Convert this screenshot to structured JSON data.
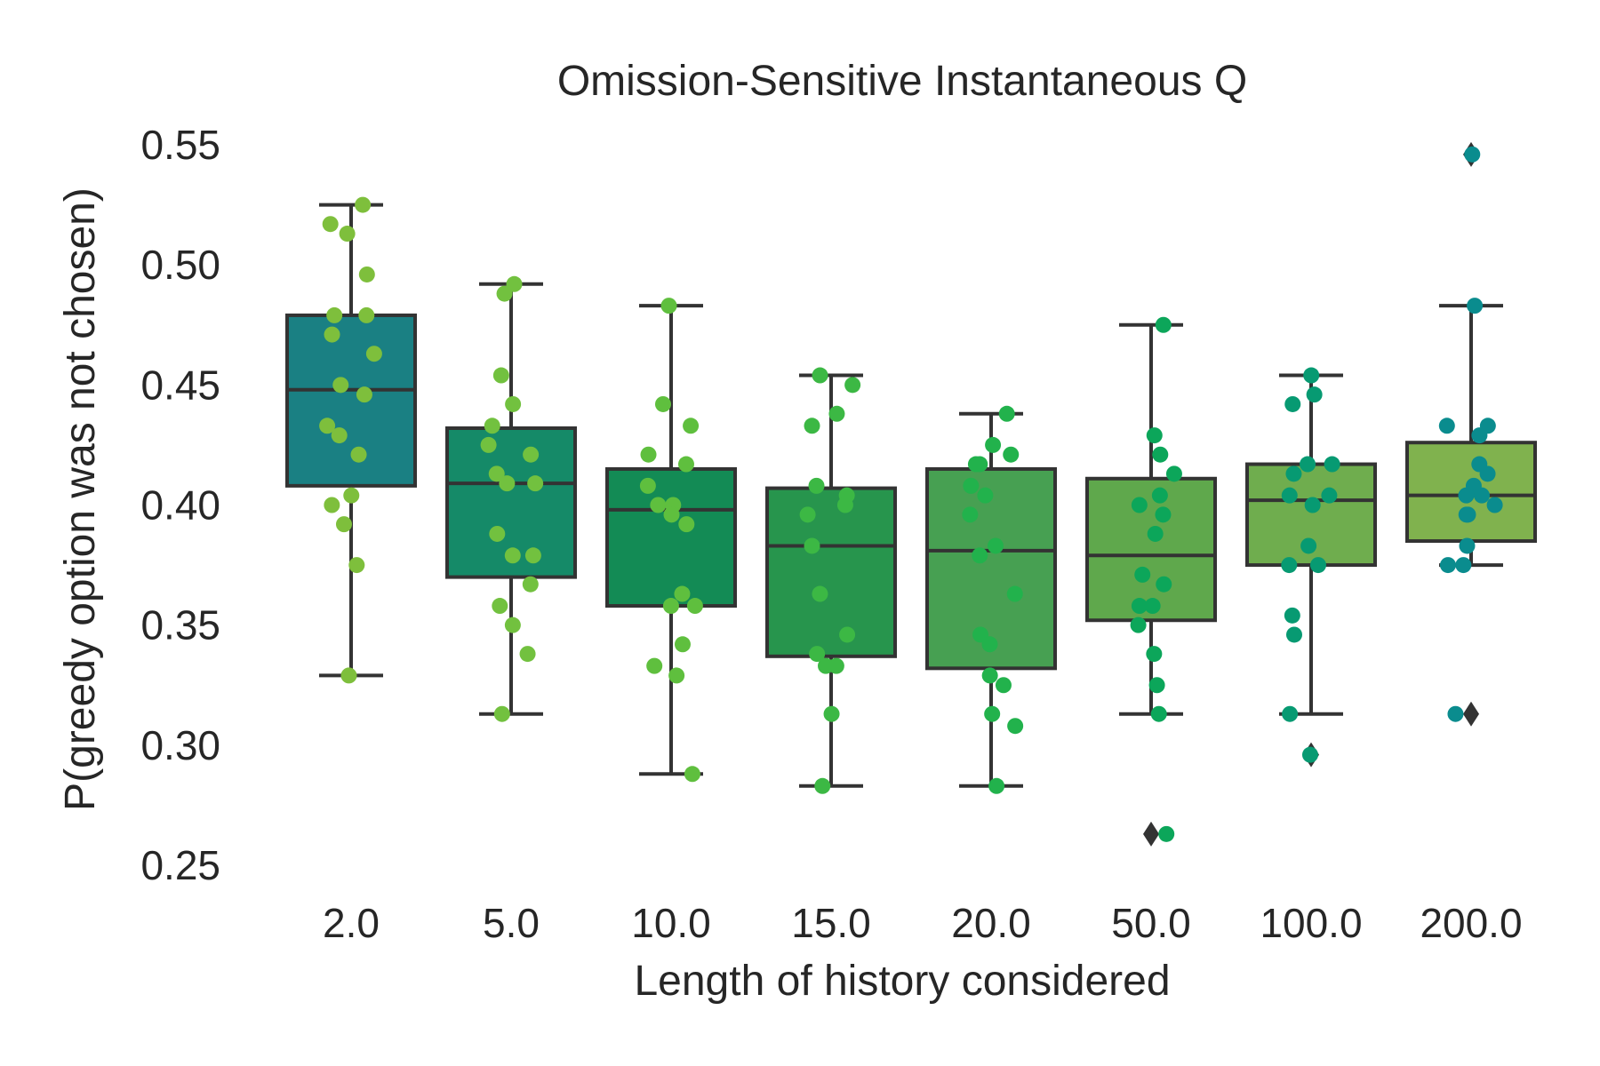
{
  "chart_data": {
    "type": "box",
    "title": "Omission-Sensitive Instantaneous Q",
    "xlabel": "Length of history considered",
    "ylabel": "P(greedy option was not chosen)",
    "ylim": [
      0.24,
      0.56
    ],
    "yticks": [
      0.25,
      0.3,
      0.35,
      0.4,
      0.45,
      0.5,
      0.55
    ],
    "ytick_labels": [
      "0.25",
      "0.30",
      "0.35",
      "0.40",
      "0.45",
      "0.50",
      "0.55"
    ],
    "categories": [
      "2.0",
      "5.0",
      "10.0",
      "15.0",
      "20.0",
      "50.0",
      "100.0",
      "200.0"
    ],
    "grid": false,
    "legend": "none",
    "boxes": [
      {
        "category": "2.0",
        "q1": 0.408,
        "median": 0.448,
        "q3": 0.479,
        "whisker_low": 0.329,
        "whisker_high": 0.525,
        "outliers": [],
        "box_color": "#1a8083",
        "point_color": "#7ebf3c",
        "points": [
          0.525,
          0.517,
          0.513,
          0.496,
          0.479,
          0.479,
          0.471,
          0.463,
          0.45,
          0.446,
          0.433,
          0.429,
          0.421,
          0.404,
          0.4,
          0.392,
          0.375,
          0.329
        ]
      },
      {
        "category": "5.0",
        "q1": 0.37,
        "median": 0.409,
        "q3": 0.432,
        "whisker_low": 0.313,
        "whisker_high": 0.492,
        "outliers": [],
        "box_color": "#158a68",
        "point_color": "#72c13f",
        "points": [
          0.492,
          0.488,
          0.454,
          0.442,
          0.433,
          0.425,
          0.421,
          0.413,
          0.409,
          0.409,
          0.388,
          0.379,
          0.379,
          0.367,
          0.358,
          0.35,
          0.338,
          0.313
        ]
      },
      {
        "category": "10.0",
        "q1": 0.358,
        "median": 0.398,
        "q3": 0.415,
        "whisker_low": 0.288,
        "whisker_high": 0.483,
        "outliers": [],
        "box_color": "#138b55",
        "point_color": "#5fbf3e",
        "points": [
          0.483,
          0.442,
          0.433,
          0.421,
          0.417,
          0.408,
          0.4,
          0.4,
          0.396,
          0.392,
          0.363,
          0.358,
          0.358,
          0.342,
          0.333,
          0.329,
          0.288
        ]
      },
      {
        "category": "15.0",
        "q1": 0.337,
        "median": 0.383,
        "q3": 0.407,
        "whisker_low": 0.283,
        "whisker_high": 0.454,
        "outliers": [],
        "box_color": "#27954d",
        "point_color": "#3cb844",
        "points": [
          0.454,
          0.45,
          0.438,
          0.433,
          0.408,
          0.404,
          0.4,
          0.396,
          0.383,
          0.363,
          0.346,
          0.338,
          0.333,
          0.333,
          0.313,
          0.283
        ]
      },
      {
        "category": "20.0",
        "q1": 0.332,
        "median": 0.381,
        "q3": 0.415,
        "whisker_low": 0.283,
        "whisker_high": 0.438,
        "outliers": [],
        "box_color": "#47a052",
        "point_color": "#22b24c",
        "points": [
          0.438,
          0.425,
          0.421,
          0.417,
          0.417,
          0.408,
          0.404,
          0.396,
          0.383,
          0.379,
          0.363,
          0.346,
          0.342,
          0.329,
          0.325,
          0.313,
          0.308,
          0.283
        ]
      },
      {
        "category": "50.0",
        "q1": 0.352,
        "median": 0.379,
        "q3": 0.411,
        "whisker_low": 0.313,
        "whisker_high": 0.475,
        "outliers": [
          0.263
        ],
        "box_color": "#5fa84c",
        "point_color": "#0ca65a",
        "points": [
          0.475,
          0.429,
          0.421,
          0.413,
          0.404,
          0.4,
          0.396,
          0.388,
          0.371,
          0.367,
          0.358,
          0.358,
          0.35,
          0.338,
          0.325,
          0.313,
          0.263
        ]
      },
      {
        "category": "100.0",
        "q1": 0.375,
        "median": 0.402,
        "q3": 0.417,
        "whisker_low": 0.313,
        "whisker_high": 0.454,
        "outliers": [
          0.296
        ],
        "box_color": "#6fad4e",
        "point_color": "#079a72",
        "points": [
          0.454,
          0.446,
          0.442,
          0.417,
          0.417,
          0.413,
          0.404,
          0.404,
          0.4,
          0.383,
          0.375,
          0.375,
          0.354,
          0.346,
          0.313,
          0.296
        ]
      },
      {
        "category": "200.0",
        "q1": 0.385,
        "median": 0.404,
        "q3": 0.426,
        "whisker_low": 0.375,
        "whisker_high": 0.483,
        "outliers": [
          0.546,
          0.313
        ],
        "box_color": "#80b24e",
        "point_color": "#0a8c8e",
        "points": [
          0.546,
          0.483,
          0.433,
          0.433,
          0.429,
          0.417,
          0.413,
          0.408,
          0.404,
          0.404,
          0.4,
          0.396,
          0.396,
          0.383,
          0.375,
          0.375,
          0.313
        ]
      }
    ]
  }
}
